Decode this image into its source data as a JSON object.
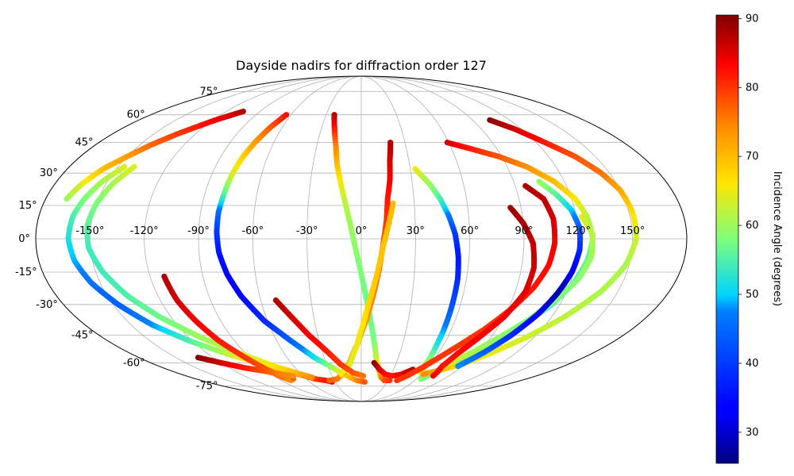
{
  "chart_data": {
    "type": "scatter",
    "projection": "mollweide",
    "title": "Dayside nadirs for diffraction order 127",
    "xlabel": "",
    "ylabel": "",
    "longitude_ticks": [
      -150,
      -120,
      -90,
      -60,
      -30,
      0,
      30,
      60,
      90,
      120,
      150
    ],
    "longitude_tick_labels": [
      "-150°",
      "-120°",
      "-90°",
      "-60°",
      "-30°",
      "0°",
      "30°",
      "60°",
      "90°",
      "120°",
      "150°"
    ],
    "latitude_ticks": [
      75,
      60,
      45,
      30,
      15,
      0,
      -15,
      -30,
      -45,
      -60,
      -75
    ],
    "latitude_tick_labels": [
      "75°",
      "60°",
      "45°",
      "30°",
      "15°",
      "0°",
      "-15°",
      "-30°",
      "-45°",
      "-60°",
      "-75°"
    ],
    "grid": true,
    "colormap": "jet",
    "colorbar": {
      "label": "Incidence Angle (degrees)",
      "range": [
        25.5,
        90.5
      ],
      "ticks": [
        30,
        40,
        50,
        60,
        70,
        80,
        90
      ],
      "tick_labels": [
        "30",
        "40",
        "50",
        "60",
        "70",
        "80",
        "90"
      ]
    },
    "series": [
      {
        "points": [
          [
            -105,
            62,
            88
          ],
          [
            -118,
            57,
            84
          ],
          [
            -132,
            50,
            80
          ],
          [
            -142,
            44,
            77
          ],
          [
            -150,
            38,
            73
          ],
          [
            -158,
            32,
            70
          ],
          [
            -164,
            25,
            65
          ],
          [
            -168,
            18,
            60
          ]
        ]
      },
      {
        "points": [
          [
            -146,
            33,
            64
          ],
          [
            -153,
            26,
            61
          ],
          [
            -158,
            18,
            58
          ],
          [
            -161,
            10,
            55
          ],
          [
            -162,
            0,
            52
          ],
          [
            -160,
            -10,
            49
          ],
          [
            -155,
            -20,
            46
          ],
          [
            -147,
            -30,
            44
          ],
          [
            -136,
            -40,
            48
          ],
          [
            -122,
            -48,
            55
          ],
          [
            -105,
            -55,
            62
          ],
          [
            -88,
            -60,
            68
          ],
          [
            -73,
            -64,
            73
          ],
          [
            -62,
            -67,
            78
          ],
          [
            -50,
            -70,
            80
          ],
          [
            -40,
            -71,
            82
          ],
          [
            -34,
            -72,
            84
          ]
        ]
      },
      {
        "points": [
          [
            -140,
            33,
            64
          ],
          [
            -146,
            25,
            61
          ],
          [
            -150,
            16,
            58
          ],
          [
            -152,
            6,
            56
          ],
          [
            -151,
            -4,
            54
          ],
          [
            -146,
            -15,
            54
          ],
          [
            -138,
            -26,
            55
          ],
          [
            -127,
            -36,
            57
          ],
          [
            -112,
            -46,
            60
          ],
          [
            -94,
            -55,
            63
          ],
          [
            -78,
            -62,
            66
          ],
          [
            -64,
            -66,
            70
          ],
          [
            -52,
            -69,
            74
          ]
        ]
      },
      {
        "points": [
          [
            -112,
            -17,
            88
          ],
          [
            -110,
            -28,
            86
          ],
          [
            -106,
            -38,
            84
          ],
          [
            -101,
            -48,
            82
          ],
          [
            -94,
            -57,
            80
          ],
          [
            -88,
            -64,
            78
          ],
          [
            -83,
            -69,
            76
          ],
          [
            -79,
            -71,
            74
          ],
          [
            -74,
            -70,
            76
          ],
          [
            -71,
            -68,
            80
          ]
        ]
      },
      {
        "points": [
          [
            -132,
            -57,
            90
          ],
          [
            -120,
            -60,
            86
          ],
          [
            -106,
            -63,
            82
          ],
          [
            -92,
            -65,
            78
          ],
          [
            -80,
            -67,
            75
          ],
          [
            -70,
            -68,
            74
          ]
        ]
      },
      {
        "points": [
          [
            -64,
            60,
            83
          ],
          [
            -69,
            53,
            78
          ],
          [
            -73,
            45,
            73
          ],
          [
            -76,
            37,
            68
          ],
          [
            -78,
            28,
            63
          ],
          [
            -79,
            20,
            56
          ],
          [
            -80,
            12,
            46
          ],
          [
            -80,
            3,
            40
          ],
          [
            -79,
            -6,
            36
          ],
          [
            -76,
            -16,
            34
          ],
          [
            -71,
            -26,
            34
          ],
          [
            -62,
            -38,
            38
          ],
          [
            -50,
            -48,
            44
          ],
          [
            -38,
            -57,
            51
          ],
          [
            -26,
            -63,
            60
          ],
          [
            -15,
            -68,
            68
          ],
          [
            -5,
            -71,
            74
          ],
          [
            4,
            -72,
            78
          ]
        ]
      },
      {
        "points": [
          [
            -23,
            60,
            88
          ],
          [
            -20,
            52,
            82
          ],
          [
            -17,
            43,
            75
          ],
          [
            -15,
            34,
            70
          ],
          [
            -12,
            25,
            65
          ],
          [
            -9,
            16,
            62
          ],
          [
            -6,
            6,
            60
          ],
          [
            -3,
            -5,
            59
          ],
          [
            0,
            -16,
            58
          ],
          [
            3,
            -27,
            57
          ],
          [
            6,
            -38,
            57
          ],
          [
            9,
            -48,
            58
          ],
          [
            12,
            -57,
            62
          ],
          [
            16,
            -64,
            68
          ],
          [
            21,
            -69,
            74
          ],
          [
            26,
            -71,
            78
          ],
          [
            32,
            -71,
            80
          ]
        ]
      },
      {
        "points": [
          [
            20,
            45,
            88
          ],
          [
            18,
            36,
            86
          ],
          [
            17,
            27,
            84
          ],
          [
            15,
            18,
            82
          ],
          [
            14,
            8,
            80
          ],
          [
            12,
            -3,
            78
          ],
          [
            10,
            -14,
            77
          ],
          [
            7,
            -26,
            75
          ],
          [
            3,
            -38,
            74
          ],
          [
            -3,
            -50,
            73
          ],
          [
            -10,
            -60,
            73
          ],
          [
            -17,
            -66,
            74
          ],
          [
            -26,
            -70,
            75
          ],
          [
            -36,
            -71,
            77
          ]
        ]
      },
      {
        "points": [
          [
            18,
            16,
            70
          ],
          [
            15,
            6,
            70
          ],
          [
            12,
            -4,
            69
          ],
          [
            9,
            -16,
            69
          ],
          [
            5,
            -28,
            68
          ],
          [
            1,
            -40,
            66
          ],
          [
            -4,
            -52,
            65
          ],
          [
            -10,
            -61,
            64
          ],
          [
            -20,
            -67,
            66
          ]
        ]
      },
      {
        "points": [
          [
            -51,
            -28,
            88
          ],
          [
            -44,
            -36,
            86
          ],
          [
            -36,
            -45,
            84
          ],
          [
            -27,
            -53,
            82
          ],
          [
            -18,
            -61,
            80
          ],
          [
            -8,
            -66,
            78
          ],
          [
            2,
            -68,
            76
          ]
        ]
      },
      {
        "points": [
          [
            11,
            -60,
            90
          ],
          [
            17,
            -64,
            86
          ],
          [
            24,
            -67,
            83
          ],
          [
            32,
            -68,
            82
          ],
          [
            40,
            -67,
            84
          ],
          [
            48,
            -64,
            88
          ]
        ]
      },
      {
        "points": [
          [
            33,
            32,
            65
          ],
          [
            40,
            25,
            60
          ],
          [
            45,
            18,
            55
          ],
          [
            49,
            10,
            47
          ],
          [
            52,
            2,
            40
          ],
          [
            54,
            -8,
            36
          ],
          [
            55,
            -18,
            38
          ],
          [
            55,
            -30,
            42
          ],
          [
            55,
            -40,
            47
          ],
          [
            55,
            -50,
            52
          ],
          [
            56,
            -60,
            60
          ],
          [
            58,
            -66,
            66
          ]
        ]
      },
      {
        "points": [
          [
            59,
            45,
            86
          ],
          [
            72,
            42,
            82
          ],
          [
            88,
            38,
            78
          ],
          [
            102,
            33,
            74
          ],
          [
            114,
            26,
            70
          ],
          [
            122,
            18,
            66
          ],
          [
            126,
            10,
            62
          ],
          [
            128,
            0,
            58
          ],
          [
            126,
            -10,
            56
          ],
          [
            122,
            -20,
            54
          ],
          [
            115,
            -30,
            53
          ],
          [
            105,
            -40,
            53
          ],
          [
            95,
            -50,
            53
          ],
          [
            85,
            -57,
            54
          ],
          [
            75,
            -64,
            56
          ],
          [
            65,
            -70,
            58
          ]
        ]
      },
      {
        "points": [
          [
            104,
            57,
            90
          ],
          [
            115,
            52,
            86
          ],
          [
            126,
            45,
            82
          ],
          [
            137,
            38,
            78
          ],
          [
            145,
            30,
            76
          ],
          [
            150,
            22,
            72
          ],
          [
            152,
            12,
            67
          ],
          [
            152,
            0,
            63
          ],
          [
            148,
            -12,
            61
          ],
          [
            140,
            -24,
            61
          ],
          [
            128,
            -36,
            62
          ],
          [
            115,
            -46,
            63
          ],
          [
            100,
            -55,
            65
          ],
          [
            87,
            -61,
            67
          ],
          [
            75,
            -64,
            69
          ],
          [
            62,
            -67,
            74
          ]
        ]
      },
      {
        "points": [
          [
            123,
            10,
            64
          ],
          [
            128,
            2,
            62
          ],
          [
            128,
            -8,
            60
          ],
          [
            124,
            -18,
            59
          ],
          [
            116,
            -28,
            58
          ],
          [
            106,
            -38,
            58
          ],
          [
            96,
            -46,
            59
          ],
          [
            86,
            -54,
            61
          ],
          [
            76,
            -60,
            63
          ]
        ]
      },
      {
        "points": [
          [
            96,
            24,
            88
          ],
          [
            104,
            18,
            87
          ],
          [
            107,
            9,
            86
          ],
          [
            107,
            -2,
            84
          ],
          [
            105,
            -12,
            83
          ],
          [
            100,
            -22,
            82
          ],
          [
            92,
            -32,
            81
          ],
          [
            82,
            -42,
            80
          ],
          [
            72,
            -50,
            80
          ],
          [
            63,
            -57,
            80
          ],
          [
            55,
            -63,
            80
          ],
          [
            47,
            -68,
            80
          ],
          [
            40,
            -71,
            80
          ]
        ]
      },
      {
        "points": [
          [
            84,
            14,
            89
          ],
          [
            90,
            7,
            88
          ],
          [
            95,
            -2,
            87
          ],
          [
            97,
            -13,
            86
          ],
          [
            96,
            -24,
            85
          ],
          [
            90,
            -36,
            84
          ],
          [
            82,
            -46,
            84
          ],
          [
            75,
            -55,
            83
          ],
          [
            72,
            -62,
            82
          ],
          [
            74,
            -68,
            84
          ]
        ]
      },
      {
        "points": [
          [
            105,
            26,
            60
          ],
          [
            112,
            20,
            56
          ],
          [
            118,
            13,
            50
          ],
          [
            121,
            5,
            44
          ],
          [
            121,
            -5,
            38
          ],
          [
            119,
            -15,
            32
          ],
          [
            115,
            -25,
            28
          ],
          [
            110,
            -35,
            32
          ],
          [
            103,
            -45,
            38
          ],
          [
            95,
            -54,
            44
          ],
          [
            86,
            -62,
            48
          ]
        ]
      }
    ]
  }
}
